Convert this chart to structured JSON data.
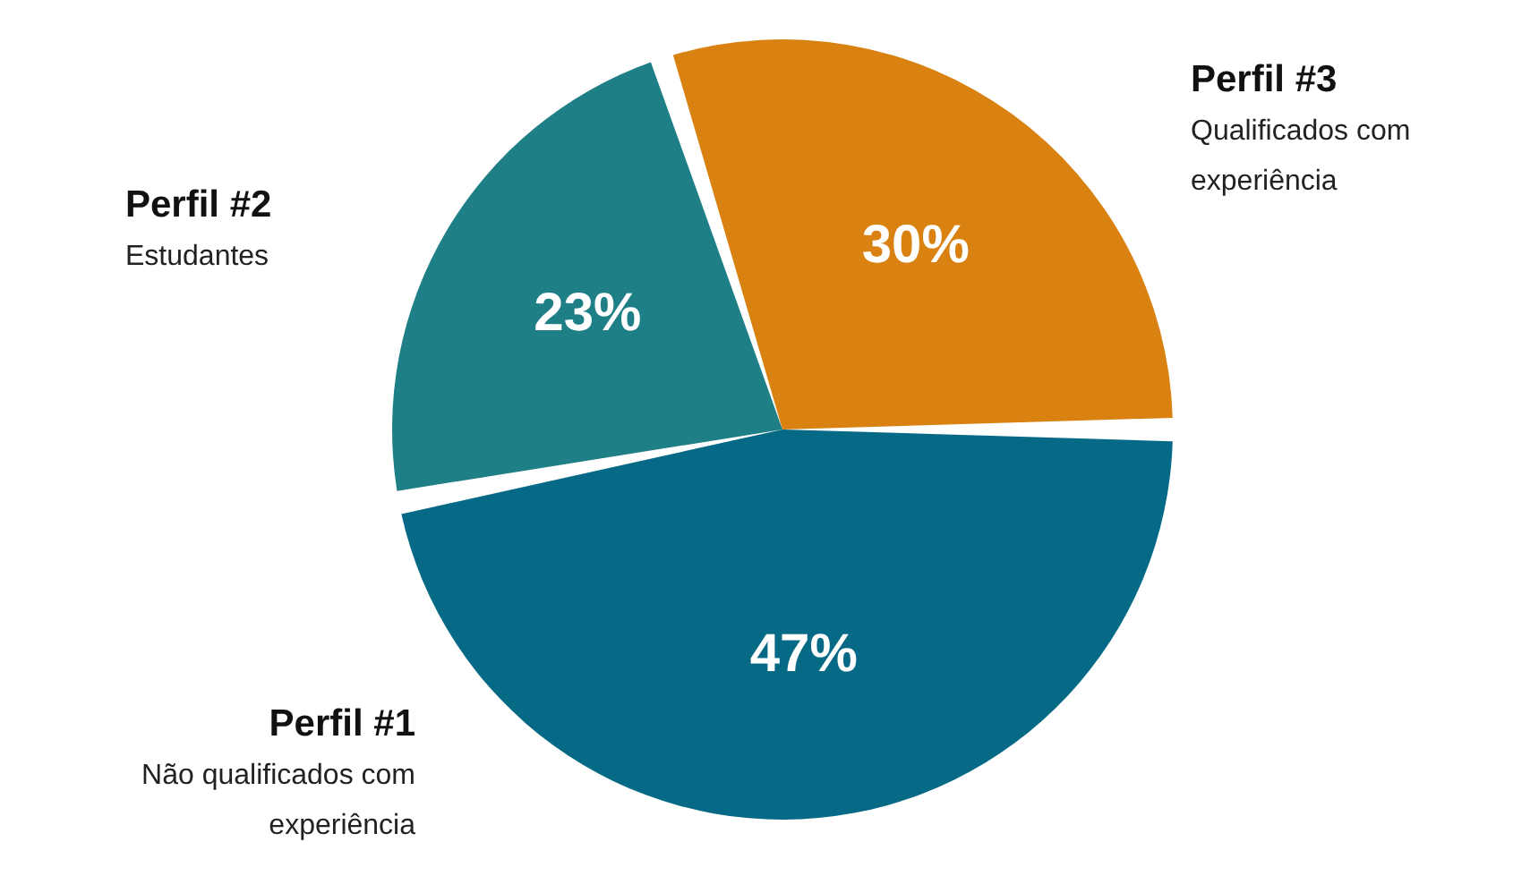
{
  "chart_data": {
    "type": "pie",
    "categories": [
      "Perfil #3",
      "Perfil #1",
      "Perfil #2"
    ],
    "values": [
      30,
      47,
      23
    ],
    "colors": [
      "#d98212",
      "#066a87",
      "#1e7f86"
    ],
    "value_labels": [
      "30%",
      "47%",
      "23%"
    ],
    "annotations": [
      "Qualificados com experiência",
      "Não qualificados com experiência",
      "Estudantes"
    ]
  }
}
